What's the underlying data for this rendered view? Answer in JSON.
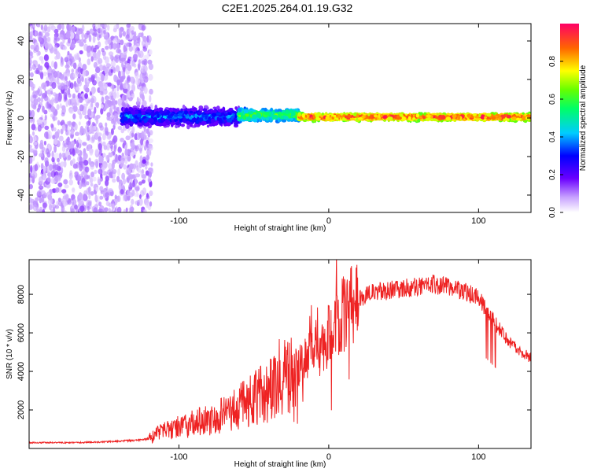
{
  "title": "C2E1.2025.264.01.19.G32",
  "chart_data": [
    {
      "type": "heatmap",
      "xlabel": "Height of straight line (km)",
      "ylabel": "Frequency (Hz)",
      "xlim": [
        -200,
        135
      ],
      "ylim": [
        -49,
        49
      ],
      "x_ticks": [
        "-100",
        "0",
        "100"
      ],
      "x_tick_values": [
        -100,
        0,
        100
      ],
      "y_ticks": [
        "-40",
        "-20",
        "0",
        "20",
        "40"
      ],
      "y_tick_values": [
        -40,
        -20,
        0,
        20,
        40
      ],
      "colorbar": {
        "label": "Normalized spectral amplitude",
        "range": [
          0,
          1
        ],
        "ticks": [
          "0.0",
          "0.2",
          "0.4",
          "0.6",
          "0.8"
        ],
        "tick_values": [
          0,
          0.2,
          0.4,
          0.6,
          0.8
        ]
      },
      "regions": [
        {
          "name": "noise",
          "x_range": [
            -200,
            -118
          ],
          "freq_range": [
            -49,
            49
          ],
          "amplitude_range": [
            0.02,
            0.12
          ]
        },
        {
          "name": "signal-onset",
          "x_range": [
            -138,
            -60
          ],
          "center_hz": 0.5,
          "halfwidth_hz": 6,
          "amplitude_range": [
            0.1,
            0.45
          ]
        },
        {
          "name": "signal-mid",
          "x_range": [
            -60,
            -20
          ],
          "center_hz": 1.5,
          "halfwidth_hz": 4,
          "amplitude_range": [
            0.3,
            0.7
          ]
        },
        {
          "name": "signal-core",
          "x_range": [
            -20,
            135
          ],
          "center_hz": 0.5,
          "halfwidth_hz": 2,
          "amplitude_range": [
            0.6,
            1.0
          ]
        }
      ]
    },
    {
      "type": "line",
      "xlabel": "Height of straight line (km)",
      "ylabel": "SNR (10 * v/v)",
      "xlim": [
        -200,
        135
      ],
      "ylim": [
        0,
        9800
      ],
      "x_ticks": [
        "-100",
        "0",
        "100"
      ],
      "x_tick_values": [
        -100,
        0,
        100
      ],
      "y_ticks": [
        "2000",
        "4000",
        "6000",
        "8000"
      ],
      "y_tick_values": [
        2000,
        4000,
        6000,
        8000
      ],
      "series": [
        {
          "name": "SNR",
          "color": "#ee2222",
          "x": [
            -200,
            -190,
            -180,
            -170,
            -160,
            -150,
            -140,
            -130,
            -120,
            -115,
            -110,
            -100,
            -90,
            -80,
            -70,
            -60,
            -50,
            -40,
            -30,
            -20,
            -15,
            -10,
            -5,
            0,
            5,
            10,
            20,
            30,
            40,
            50,
            60,
            70,
            80,
            90,
            95,
            100,
            105,
            110,
            115,
            120,
            125,
            130,
            135
          ],
          "y": [
            300,
            300,
            300,
            300,
            320,
            340,
            380,
            420,
            500,
            750,
            900,
            1100,
            1300,
            1500,
            1800,
            2200,
            2600,
            3000,
            3500,
            4100,
            4600,
            4900,
            5400,
            5900,
            6500,
            7000,
            7800,
            8100,
            8200,
            8300,
            8400,
            8500,
            8400,
            8200,
            8000,
            7800,
            7200,
            6600,
            6100,
            5600,
            5200,
            4900,
            4700
          ]
        }
      ]
    }
  ]
}
